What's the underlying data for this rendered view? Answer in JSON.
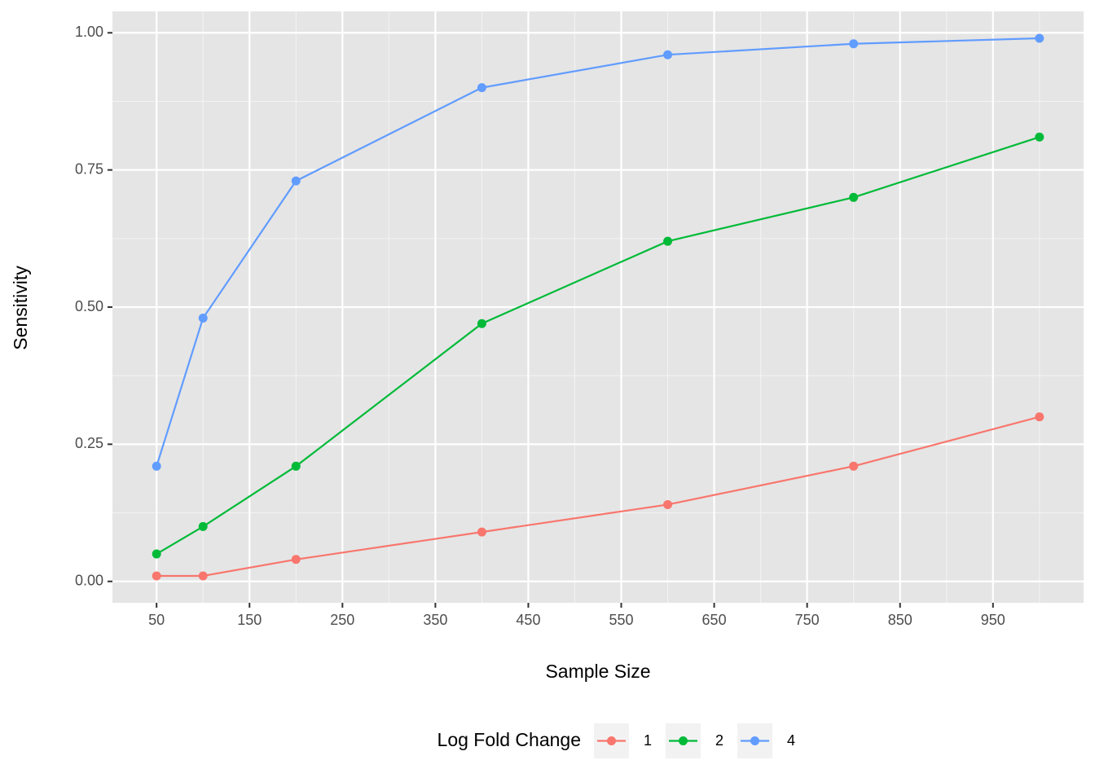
{
  "chart_data": {
    "type": "line",
    "x_label": "Sample Size",
    "y_label": "Sensitivity",
    "legend_title": "Log Fold Change",
    "legend_position": "bottom",
    "x": [
      50,
      100,
      200,
      400,
      600,
      800,
      1000
    ],
    "series": [
      {
        "name": "1",
        "color": "#F8766D",
        "values": [
          0.01,
          0.01,
          0.04,
          0.09,
          0.14,
          0.21,
          0.3
        ]
      },
      {
        "name": "2",
        "color": "#00BA38",
        "values": [
          0.05,
          0.1,
          0.21,
          0.47,
          0.62,
          0.7,
          0.81
        ]
      },
      {
        "name": "4",
        "color": "#619CFF",
        "values": [
          0.21,
          0.48,
          0.73,
          0.9,
          0.96,
          0.98,
          0.99
        ]
      }
    ],
    "xlim": [
      2.5,
      1047.5
    ],
    "xticks": [
      50,
      150,
      250,
      350,
      450,
      550,
      650,
      750,
      850,
      950
    ],
    "ylim": [
      -0.039,
      1.039
    ],
    "yticks": [
      {
        "value": 0,
        "label": "0.00"
      },
      {
        "value": 0.25,
        "label": "0.25"
      },
      {
        "value": 0.5,
        "label": "0.50"
      },
      {
        "value": 0.75,
        "label": "0.75"
      },
      {
        "value": 1,
        "label": "1.00"
      }
    ],
    "grid": true
  }
}
